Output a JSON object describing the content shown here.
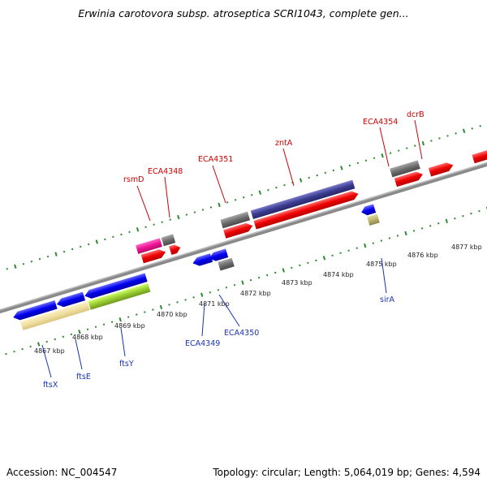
{
  "title": "Erwinia carotovora subsp. atroseptica SCRI1043, complete gen...",
  "footer": {
    "accession": "Accession: NC_004547",
    "stats": "Topology: circular; Length: 5,064,019 bp; Genes: 4,594"
  },
  "colors": {
    "backbone": "#888888",
    "minor_tick": "#2e8b2e",
    "top_label": "#cc0000",
    "bottom_label": "#1a33b3"
  },
  "scale": {
    "ticks": [
      "4867 kbp",
      "4868 kbp",
      "4869 kbp",
      "4870 kbp",
      "4871 kbp",
      "4872 kbp",
      "4873 kbp",
      "4874 kbp",
      "4875 kbp",
      "4876 kbp",
      "4877 kbp"
    ]
  },
  "genes_top": [
    {
      "label": "rsmD"
    },
    {
      "label": "ECA4348"
    },
    {
      "label": "ECA4351"
    },
    {
      "label": "zntA"
    },
    {
      "label": "ECA4354"
    },
    {
      "label": "dcrB"
    }
  ],
  "genes_bottom": [
    {
      "label": "ftsX"
    },
    {
      "label": "ftsE"
    },
    {
      "label": "ftsY"
    },
    {
      "label": "ECA4349"
    },
    {
      "label": "ECA4350"
    },
    {
      "label": "sirA"
    }
  ]
}
